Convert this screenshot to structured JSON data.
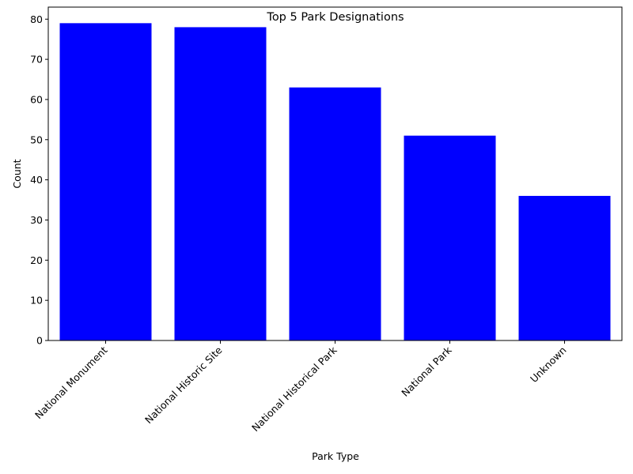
{
  "chart_data": {
    "type": "bar",
    "title": "Top 5 Park Designations",
    "xlabel": "Park Type",
    "ylabel": "Count",
    "categories": [
      "National Monument",
      "National Historic Site",
      "National Historical Park",
      "National Park",
      "Unknown"
    ],
    "values": [
      79,
      78,
      63,
      51,
      36
    ],
    "ylim": [
      0,
      83
    ],
    "yticks": [
      0,
      10,
      20,
      30,
      40,
      50,
      60,
      70,
      80
    ],
    "bar_color": "#0000ff",
    "grid": false,
    "legend": "none"
  }
}
